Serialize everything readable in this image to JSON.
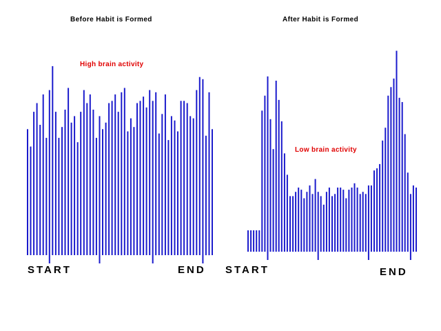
{
  "chart_data": [
    {
      "type": "bar",
      "title": "Before Habit is Formed",
      "annotation": "High brain activity",
      "start_label": "START",
      "end_label": "END",
      "color": "#1a1acc",
      "ylim": [
        0,
        100
      ],
      "values": [
        58,
        50,
        66,
        70,
        60,
        74,
        54,
        76,
        87,
        66,
        54,
        59,
        67,
        77,
        61,
        64,
        52,
        66,
        76,
        70,
        74,
        67,
        54,
        64,
        58,
        61,
        70,
        71,
        74,
        66,
        75,
        77,
        57,
        63,
        59,
        70,
        71,
        73,
        68,
        76,
        71,
        75,
        56,
        65,
        74,
        53,
        64,
        62,
        57,
        71,
        71,
        70,
        64,
        63,
        76,
        82,
        81,
        55,
        75,
        58
      ],
      "ticks_below": [
        7,
        23,
        40,
        56
      ]
    },
    {
      "type": "bar",
      "title": "After Habit is Formed",
      "annotation": "Low brain activity",
      "start_label": "START",
      "end_label": "END",
      "color": "#1a1acc",
      "ylim": [
        0,
        100
      ],
      "values": [
        10,
        10,
        10,
        10,
        10,
        66,
        73,
        82,
        62,
        48,
        80,
        71,
        61,
        46,
        36,
        26,
        26,
        28,
        30,
        29,
        25,
        28,
        31,
        27,
        34,
        28,
        26,
        22,
        28,
        30,
        26,
        27,
        30,
        30,
        29,
        25,
        29,
        30,
        32,
        30,
        27,
        28,
        27,
        31,
        31,
        38,
        39,
        41,
        52,
        58,
        73,
        77,
        81,
        94,
        72,
        70,
        55,
        37,
        27,
        31,
        30
      ],
      "ticks_below": [
        7,
        25,
        43,
        58
      ]
    }
  ]
}
